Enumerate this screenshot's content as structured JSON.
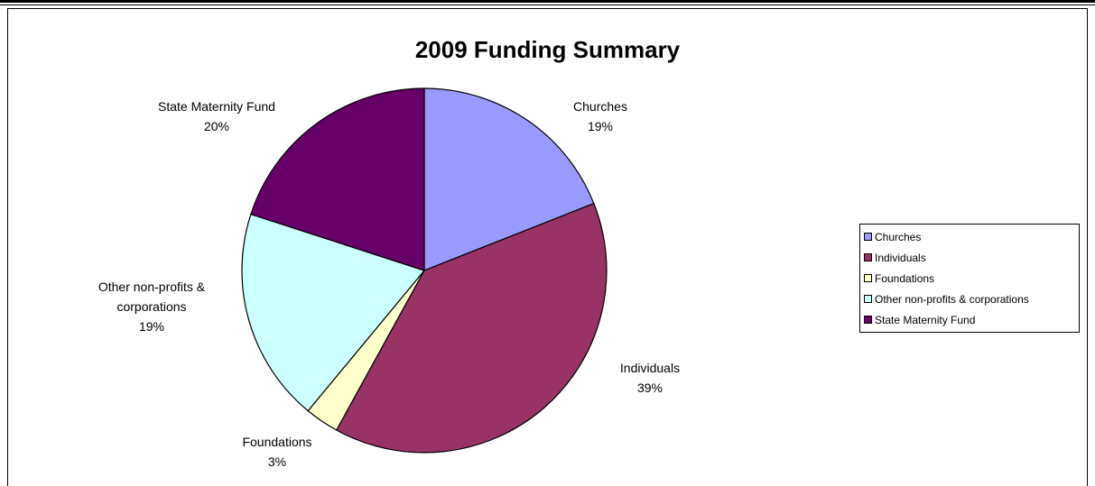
{
  "chart_data": {
    "type": "pie",
    "title": "2009 Funding Summary",
    "slices": [
      {
        "name": "Churches",
        "value": 19,
        "label": "19%",
        "color": "#9999ff"
      },
      {
        "name": "Individuals",
        "value": 39,
        "label": "39%",
        "color": "#993366"
      },
      {
        "name": "Foundations",
        "value": 3,
        "label": "3%",
        "color": "#ffffcc"
      },
      {
        "name": "Other non-profits & corporations",
        "value": 19,
        "label": "19%",
        "color": "#ccffff"
      },
      {
        "name": "State Maternity Fund",
        "value": 20,
        "label": "20%",
        "color": "#660066"
      }
    ],
    "legend": {
      "position": "right",
      "items": [
        "Churches",
        "Individuals",
        "Foundations",
        "Other non-profits & corporations",
        "State Maternity Fund"
      ]
    },
    "data_labels": {
      "churches": [
        "Churches",
        "19%"
      ],
      "individuals": [
        "Individuals",
        "39%"
      ],
      "foundations": [
        "Foundations",
        "3%"
      ],
      "other": [
        "Other non-profits &",
        "corporations",
        "19%"
      ],
      "state": [
        "State Maternity Fund",
        "20%"
      ]
    }
  }
}
